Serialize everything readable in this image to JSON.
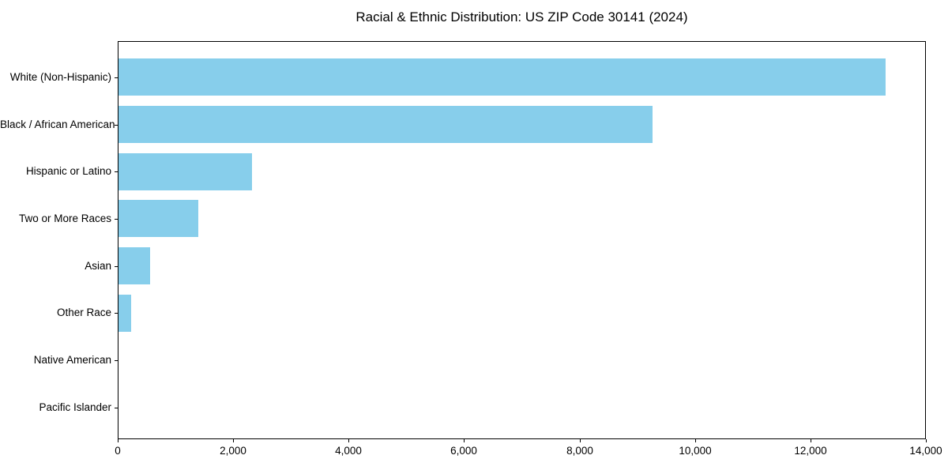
{
  "figure": {
    "background_color": "#ffffff",
    "plot_border_color": "#000000",
    "text_color": "#000000"
  },
  "chart_data": {
    "type": "bar",
    "orientation": "horizontal",
    "title": "Racial & Ethnic Distribution: US ZIP Code 30141 (2024)",
    "categories": [
      "White (Non-Hispanic)",
      "Black / African American",
      "Hispanic or Latino",
      "Two or More Races",
      "Asian",
      "Other Race",
      "Native American",
      "Pacific Islander"
    ],
    "values": [
      13320,
      9270,
      2320,
      1380,
      550,
      220,
      0,
      0
    ],
    "xlabel": "",
    "ylabel": "",
    "xlim": [
      0,
      14000
    ],
    "x_ticks": [
      0,
      2000,
      4000,
      6000,
      8000,
      10000,
      12000,
      14000
    ],
    "x_tick_labels": [
      "0",
      "2,000",
      "4,000",
      "6,000",
      "8,000",
      "10,000",
      "12,000",
      "14,000"
    ],
    "bar_color": "#87CEEB",
    "grid": false,
    "legend_position": "none"
  }
}
